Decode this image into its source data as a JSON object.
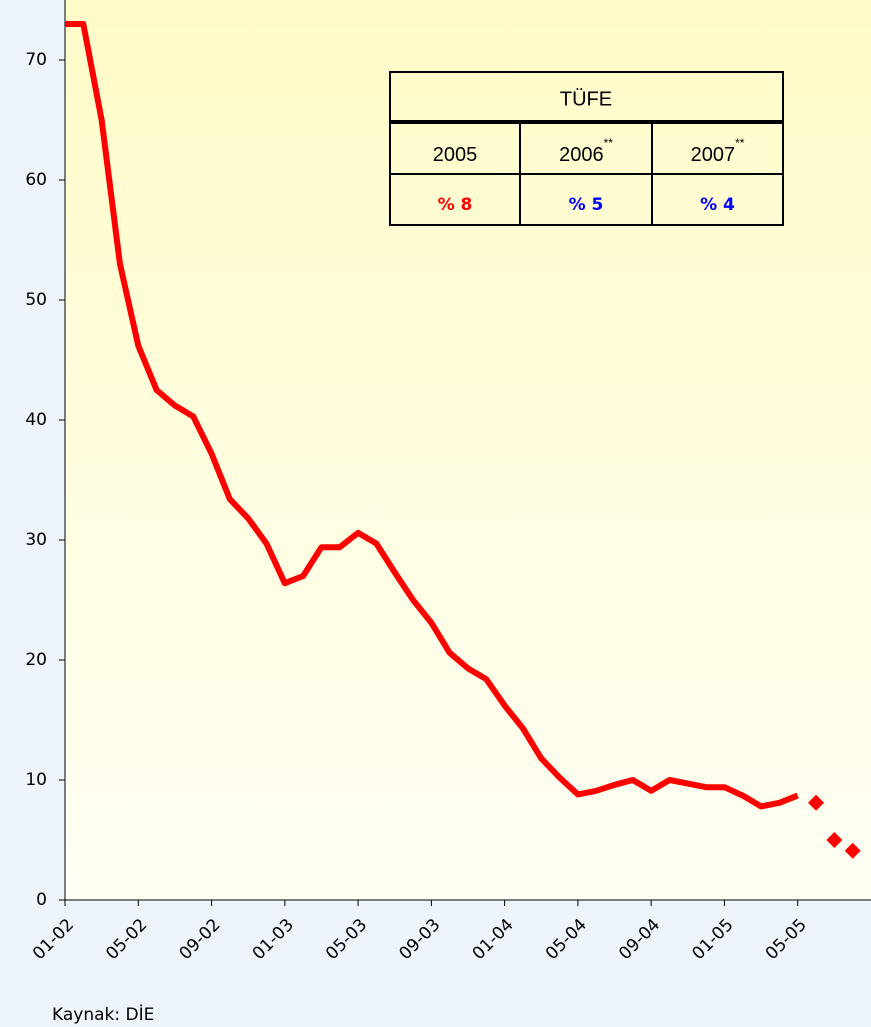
{
  "chart_data": {
    "type": "line",
    "categories": [
      "01-02",
      null,
      null,
      null,
      "05-02",
      null,
      null,
      null,
      "09-02",
      null,
      null,
      null,
      "01-03",
      null,
      null,
      null,
      "05-03",
      null,
      null,
      null,
      "09-03",
      null,
      null,
      null,
      "01-04",
      null,
      null,
      null,
      "05-04",
      null,
      null,
      null,
      "09-04",
      null,
      null,
      null,
      "01-05",
      null,
      null,
      null,
      "05-05",
      null,
      null,
      null
    ],
    "series": [
      {
        "color": "#ff0000",
        "values": [
          73,
          73,
          65,
          53,
          46.2,
          42.5,
          41.2,
          40.3,
          37.2,
          33.4,
          31.8,
          29.7,
          26.4,
          27.0,
          29.4,
          29.4,
          30.6,
          29.7,
          27.3,
          25.0,
          23.1,
          20.6,
          19.3,
          18.4,
          16.2,
          14.3,
          11.8,
          10.2,
          8.8,
          9.1,
          9.6,
          10.0,
          9.1,
          10.0,
          9.7,
          9.4,
          9.4,
          8.7,
          7.8,
          8.1,
          8.7,
          null,
          null,
          null
        ]
      },
      {
        "color": "#ff0000",
        "marker": "diamond",
        "values": [
          null,
          null,
          null,
          null,
          null,
          null,
          null,
          null,
          null,
          null,
          null,
          null,
          null,
          null,
          null,
          null,
          null,
          null,
          null,
          null,
          null,
          null,
          null,
          null,
          null,
          null,
          null,
          null,
          null,
          null,
          null,
          null,
          null,
          null,
          null,
          null,
          null,
          null,
          null,
          null,
          null,
          8.1,
          5.0,
          4.1
        ]
      }
    ],
    "xlim": [
      0,
      44
    ],
    "ylim": [
      0,
      75
    ],
    "yticks": [
      0,
      10,
      20,
      30,
      40,
      50,
      60,
      70
    ]
  },
  "table": {
    "title": "TÜFE",
    "headers": [
      {
        "text": "2005"
      },
      {
        "text": "2006",
        "sup": "**"
      },
      {
        "text": "2007",
        "sup": "**"
      }
    ],
    "values": [
      {
        "text": "% 8",
        "color": "#ff0000"
      },
      {
        "text": "% 5",
        "color": "#0000ff"
      },
      {
        "text": "% 4",
        "color": "#0000ff"
      }
    ]
  },
  "source": "Kaynak: DİE"
}
